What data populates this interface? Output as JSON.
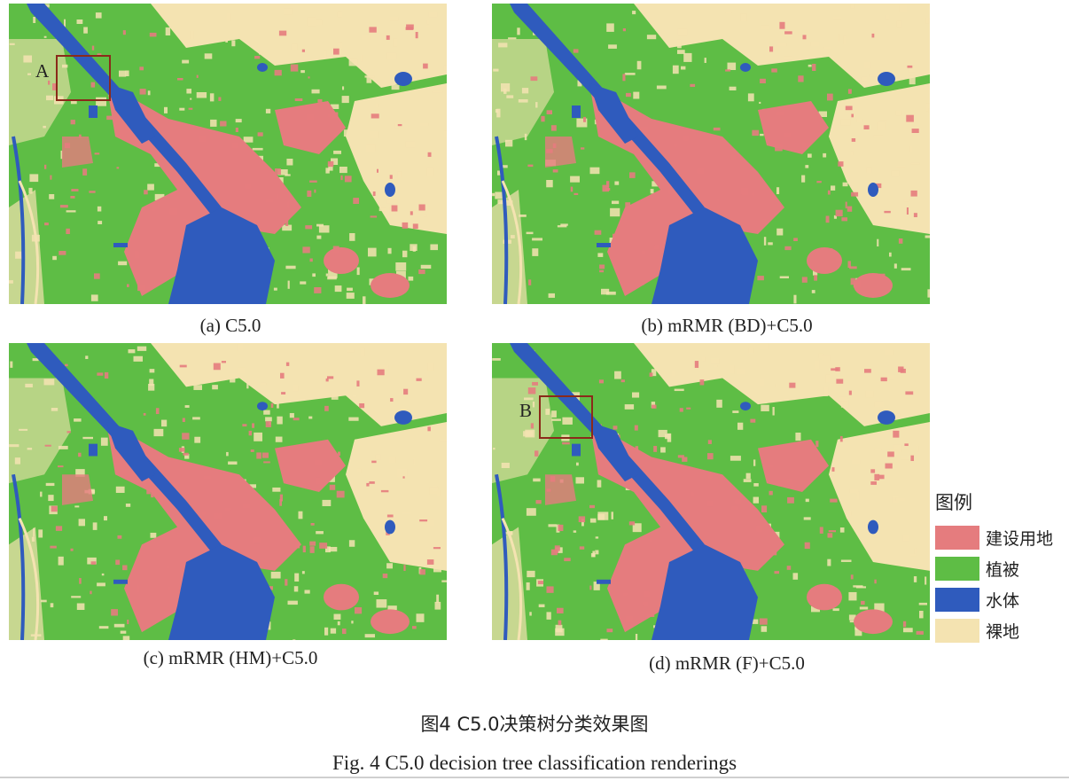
{
  "colors": {
    "construction": "#e57c7e",
    "vegetation": "#5ebd45",
    "water": "#2f5bbd",
    "bare": "#f4e3b1"
  },
  "panels": [
    {
      "caption": "(a) C5.0",
      "marker": "A"
    },
    {
      "caption": "(b) mRMR (BD)+C5.0",
      "marker": ""
    },
    {
      "caption": "(c) mRMR (HM)+C5.0",
      "marker": ""
    },
    {
      "caption": "(d) mRMR (F)+C5.0",
      "marker": "B"
    }
  ],
  "legend": {
    "title": "图例",
    "items": [
      {
        "label": "建设用地",
        "color": "#e57c7e"
      },
      {
        "label": "植被",
        "color": "#5ebd45"
      },
      {
        "label": "水体",
        "color": "#2f5bbd"
      },
      {
        "label": "裸地",
        "color": "#f4e3b1"
      }
    ]
  },
  "figure": {
    "title_cn": "图4   C5.0决策树分类效果图",
    "title_en": "Fig. 4   C5.0 decision tree classification renderings"
  }
}
